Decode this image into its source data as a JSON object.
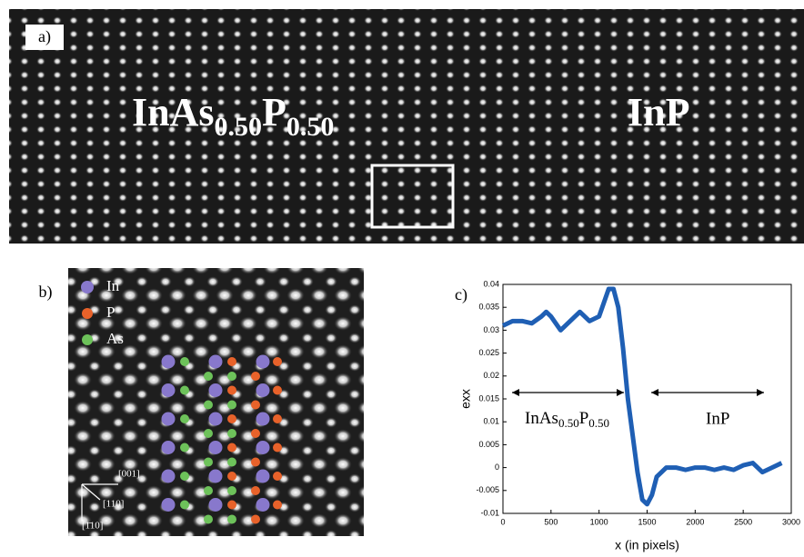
{
  "panel_a": {
    "label": "a)",
    "left_material": {
      "base": "InAs",
      "sub1": "0.50",
      "mid": "P",
      "sub2": "0.50"
    },
    "right_material": "InP"
  },
  "panel_b": {
    "label": "b)",
    "legend": [
      "In",
      "P",
      "As"
    ],
    "directions": [
      "[001]",
      "[110]",
      "[1̄10]"
    ]
  },
  "chart_data": {
    "type": "line",
    "label": "c)",
    "x_label": "x (in pixels)",
    "y_label": "exx",
    "xlim": [
      0,
      3000
    ],
    "xticks": [
      0,
      500,
      1000,
      1500,
      2000,
      2500,
      3000
    ],
    "ylim": [
      -0.01,
      0.04
    ],
    "yticks": [
      -0.01,
      -0.005,
      0,
      0.005,
      0.01,
      0.015,
      0.02,
      0.025,
      0.03,
      0.035,
      0.04
    ],
    "color": "#1f5fb4",
    "x": [
      0,
      100,
      200,
      300,
      400,
      450,
      500,
      600,
      700,
      800,
      900,
      1000,
      1050,
      1100,
      1150,
      1200,
      1250,
      1300,
      1350,
      1400,
      1450,
      1500,
      1550,
      1600,
      1700,
      1800,
      1900,
      2000,
      2100,
      2200,
      2300,
      2400,
      2500,
      2600,
      2700,
      2800,
      2900
    ],
    "values": [
      0.031,
      0.032,
      0.032,
      0.0315,
      0.033,
      0.034,
      0.033,
      0.03,
      0.032,
      0.034,
      0.032,
      0.033,
      0.036,
      0.039,
      0.039,
      0.035,
      0.026,
      0.015,
      0.007,
      -0.001,
      -0.007,
      -0.008,
      -0.006,
      -0.002,
      0,
      0,
      -0.0005,
      0,
      0,
      -0.0005,
      0,
      -0.0005,
      0.0005,
      0.001,
      -0.001,
      0,
      0.001
    ],
    "annotations": {
      "left": {
        "base": "InAs",
        "sub1": "0.50",
        "mid": "P",
        "sub2": "0.50"
      },
      "right": "InP"
    }
  }
}
